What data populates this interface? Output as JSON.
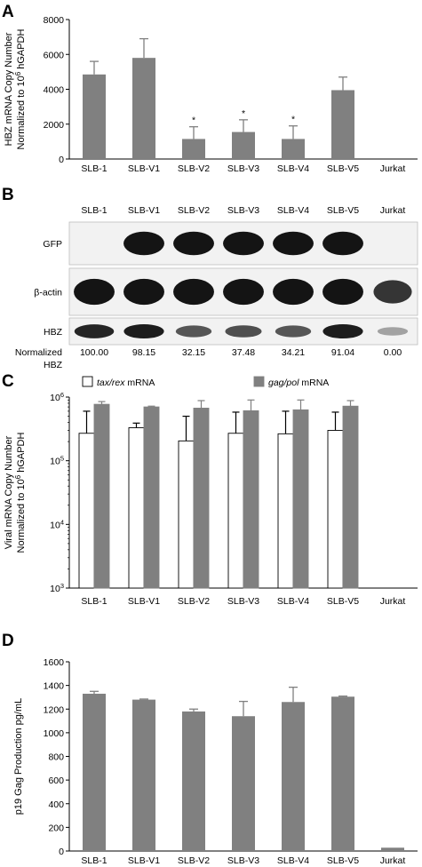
{
  "categories": [
    "SLB-1",
    "SLB-V1",
    "SLB-V2",
    "SLB-V3",
    "SLB-V4",
    "SLB-V5",
    "Jurkat"
  ],
  "colors": {
    "bar_gray": "#808080",
    "axis": "#000000",
    "blot_bg": "#f2f2f2",
    "band": "#141414"
  },
  "chart_data": [
    {
      "panel": "A",
      "type": "bar",
      "ylabel_line1": "HBZ mRNA Copy Number",
      "ylabel_line2_pre": "Normalized to 10",
      "ylabel_line2_sup": "6",
      "ylabel_line2_post": " hGAPDH",
      "ylim": [
        0,
        8000
      ],
      "yticks": [
        0,
        2000,
        4000,
        6000,
        8000
      ],
      "ytick_labels": [
        "0",
        "2000",
        "4000",
        "6000",
        "8000"
      ],
      "values": [
        4850,
        5800,
        1150,
        1550,
        1150,
        3950,
        0
      ],
      "errors": [
        750,
        1100,
        700,
        700,
        750,
        750,
        0
      ],
      "annotations": [
        "",
        "",
        "*",
        "*",
        "*",
        "",
        ""
      ]
    },
    {
      "panel": "C",
      "type": "bar",
      "scale": "log",
      "ylabel_line1": "Viral mRNA Copy Number",
      "ylabel_line2_pre": "Normalized to 10",
      "ylabel_line2_sup": "6",
      "ylabel_line2_post": " hGAPDH",
      "ylim": [
        1000,
        1000000
      ],
      "yticks": [
        1000,
        10000,
        100000,
        1000000
      ],
      "ytick_base": "10",
      "ytick_exps": [
        "3",
        "4",
        "5",
        "6"
      ],
      "legend": {
        "series1_italic": "tax/rex",
        "series1_rest": " mRNA",
        "series2_italic": "gag/pol",
        "series2_rest": " mRNA"
      },
      "series": [
        {
          "key": "tax_rex",
          "fill": "#ffffff",
          "values": [
            270000,
            330000,
            205000,
            270000,
            265000,
            300000,
            0
          ],
          "err_up": [
            600000,
            390000,
            500000,
            580000,
            600000,
            580000,
            0
          ]
        },
        {
          "key": "gag_pol",
          "fill": "#808080",
          "values": [
            770000,
            700000,
            670000,
            610000,
            630000,
            720000,
            0
          ],
          "err_up": [
            850000,
            720000,
            880000,
            900000,
            900000,
            880000,
            0
          ]
        }
      ]
    },
    {
      "panel": "D",
      "type": "bar",
      "ylabel": "p19 Gag Production pg/mL",
      "ylim": [
        0,
        1600
      ],
      "yticks": [
        0,
        200,
        400,
        600,
        800,
        1000,
        1200,
        1400,
        1600
      ],
      "ytick_labels": [
        "0",
        "200",
        "400",
        "600",
        "800",
        "1000",
        "1200",
        "1400",
        "1600"
      ],
      "values": [
        1330,
        1280,
        1180,
        1140,
        1260,
        1305,
        28
      ],
      "errors": [
        20,
        5,
        20,
        125,
        125,
        5,
        0
      ]
    }
  ],
  "blot": {
    "panel": "B",
    "rows": [
      {
        "label": "GFP",
        "intensity": [
          0,
          1,
          1,
          1,
          1,
          1,
          0
        ]
      },
      {
        "label": "β-actin",
        "intensity": [
          1,
          1,
          1,
          1,
          1,
          1,
          0.8
        ]
      },
      {
        "label": "HBZ",
        "intensity": [
          0.9,
          0.95,
          0.6,
          0.65,
          0.6,
          0.95,
          0.15
        ]
      }
    ],
    "normalized_label_line1": "Normalized",
    "normalized_label_line2": "HBZ",
    "normalized_values": [
      "100.00",
      "98.15",
      "32.15",
      "37.48",
      "34.21",
      "91.04",
      "0.00"
    ]
  }
}
